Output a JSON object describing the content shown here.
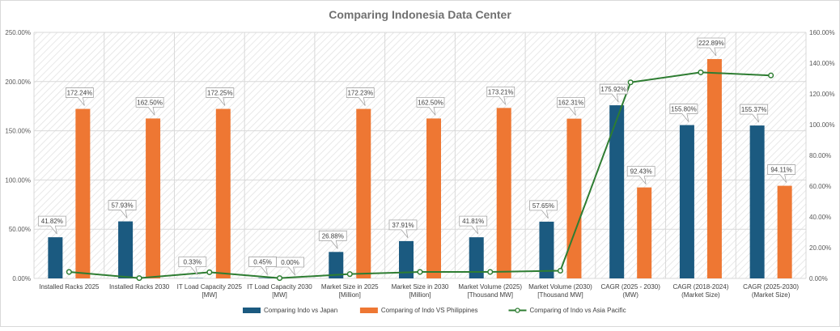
{
  "chart_data": {
    "type": "bar",
    "title": "Comparing Indonesia Data Center",
    "categories": [
      [
        "Installed Racks 2025"
      ],
      [
        "Installed Racks 2030"
      ],
      [
        "IT Load Capacity 2025",
        "[MW]"
      ],
      [
        "IT Load Capacity 2030",
        "[MW]"
      ],
      [
        "Market Size in 2025",
        "[Million]"
      ],
      [
        "Market Size in 2030",
        "[Million]"
      ],
      [
        "Market Volume (2025)",
        "[Thousand MW]"
      ],
      [
        "Market Volume (2030)",
        "[Thousand MW]"
      ],
      [
        "CAGR (2025 - 2030)",
        "(MW)"
      ],
      [
        "CAGR (2018-2024)",
        "(Market Size)"
      ],
      [
        "CAGR (2025-2030)",
        "(Market Size)"
      ]
    ],
    "y_left": {
      "ticks": [
        "0.00%",
        "50.00%",
        "100.00%",
        "150.00%",
        "200.00%",
        "250.00%"
      ],
      "range": [
        0,
        250
      ]
    },
    "y_right": {
      "ticks": [
        "0.00%",
        "20.00%",
        "40.00%",
        "60.00%",
        "80.00%",
        "100.00%",
        "120.00%",
        "140.00%",
        "160.00%"
      ],
      "range": [
        0,
        160
      ]
    },
    "grid": true,
    "legend_position": "bottom",
    "series": [
      {
        "name": "Comparing Indo vs Japan",
        "kind": "bar",
        "axis": "left",
        "color": "#1b5a80",
        "values": [
          41.82,
          57.93,
          0.33,
          0.45,
          26.88,
          37.91,
          41.81,
          57.65,
          175.92,
          155.8,
          155.37
        ],
        "labels": [
          "41.82%",
          "57.93%",
          "0.33%",
          "0.45%",
          "26.88%",
          "37.91%",
          "41.81%",
          "57.65%",
          "175.92%",
          "155.80%",
          "155.37%"
        ]
      },
      {
        "name": "Comparing of Indo VS Philippines",
        "kind": "bar",
        "axis": "left",
        "color": "#ee7733",
        "values": [
          172.24,
          162.5,
          172.25,
          0.0,
          172.23,
          162.5,
          173.21,
          162.31,
          92.43,
          222.89,
          94.11
        ],
        "labels": [
          "172.24%",
          "162.50%",
          "172.25%",
          "0.00%",
          "172.23%",
          "162.50%",
          "173.21%",
          "162.31%",
          "92.43%",
          "222.89%",
          "94.11%"
        ]
      },
      {
        "name": "Comparing of Indo vs Asia Pacific",
        "kind": "line",
        "axis": "right",
        "color": "#2e7d32",
        "values": [
          4.2,
          0.2,
          4.0,
          0.2,
          2.8,
          4.2,
          4.2,
          5.0,
          127.5,
          134.0,
          132.0
        ]
      }
    ]
  }
}
